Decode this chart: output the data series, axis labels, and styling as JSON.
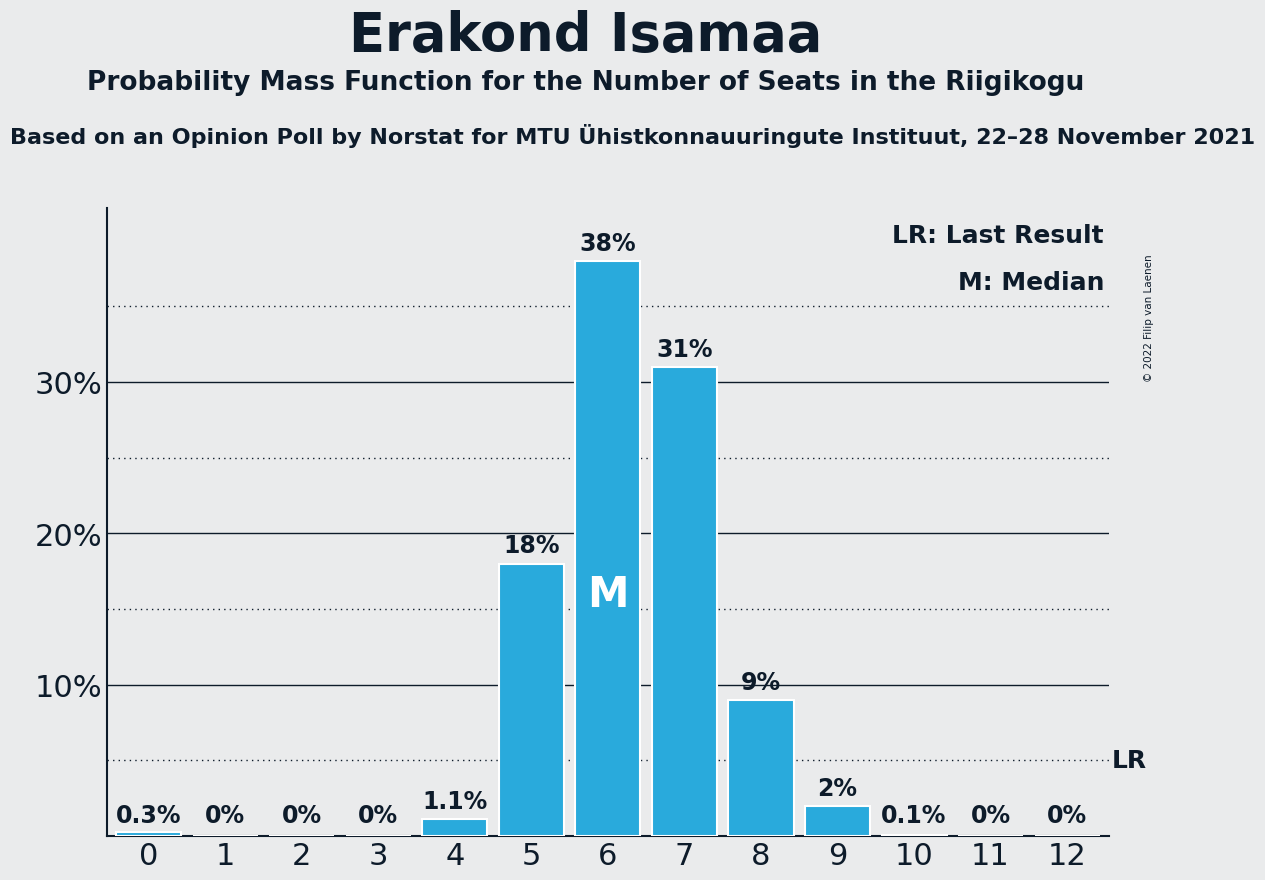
{
  "title": "Erakond Isamaa",
  "subtitle": "Probability Mass Function for the Number of Seats in the Riigikogu",
  "source_line": "Based on an Opinion Poll by Norstat for MTU Ühistkonnauuringute Instituut, 22–28 November 2021",
  "copyright": "© 2022 Filip van Laenen",
  "categories": [
    0,
    1,
    2,
    3,
    4,
    5,
    6,
    7,
    8,
    9,
    10,
    11,
    12
  ],
  "values": [
    0.003,
    0.0,
    0.0,
    0.0,
    0.011,
    0.18,
    0.38,
    0.31,
    0.09,
    0.02,
    0.001,
    0.0,
    0.0
  ],
  "labels": [
    "0.3%",
    "0%",
    "0%",
    "0%",
    "1.1%",
    "18%",
    "38%",
    "31%",
    "9%",
    "2%",
    "0.1%",
    "0%",
    "0%"
  ],
  "bar_color": "#29AADC",
  "bar_edge_color": "#FFFFFF",
  "background_color": "#EAEBEC",
  "text_color": "#0D1B2A",
  "median_seat": 6,
  "lr_value": 0.05,
  "yticks": [
    0.0,
    0.1,
    0.2,
    0.3
  ],
  "dotted_lines": [
    0.05,
    0.15,
    0.25,
    0.35
  ],
  "ylim": [
    0,
    0.415
  ],
  "xlim": [
    -0.55,
    12.55
  ],
  "legend_lr": "LR: Last Result",
  "legend_m": "M: Median",
  "title_fontsize": 38,
  "subtitle_fontsize": 19,
  "source_fontsize": 16,
  "tick_fontsize": 22,
  "label_fontsize": 17,
  "median_fontsize": 30,
  "legend_fontsize": 18
}
